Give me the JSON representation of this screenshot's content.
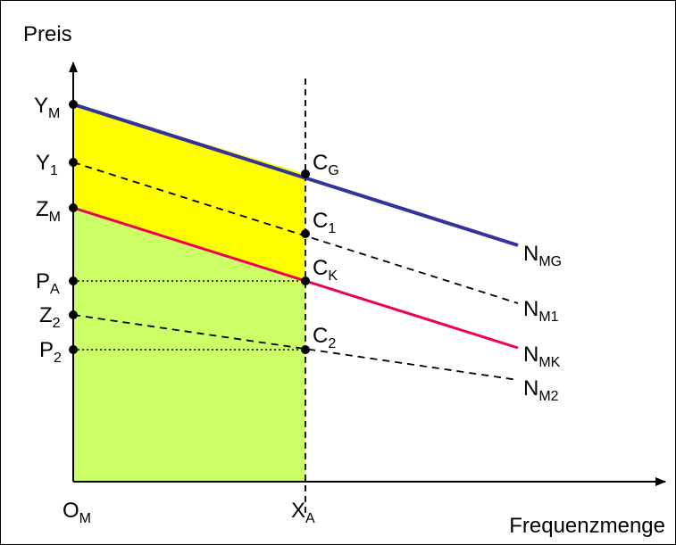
{
  "axes": {
    "y_title": "Preis",
    "x_title": "Frequenzmenge",
    "origin": {
      "base": "O",
      "sub": "M"
    },
    "x_tick": {
      "base": "X",
      "sub": "A"
    }
  },
  "y_labels": [
    {
      "id": "ym",
      "base": "Y",
      "sub": "M"
    },
    {
      "id": "y1",
      "base": "Y",
      "sub": "1"
    },
    {
      "id": "zm",
      "base": "Z",
      "sub": "M"
    },
    {
      "id": "pa",
      "base": "P",
      "sub": "A"
    },
    {
      "id": "z2",
      "base": "Z",
      "sub": "2"
    },
    {
      "id": "p2",
      "base": "P",
      "sub": "2"
    }
  ],
  "point_labels": [
    {
      "id": "cg",
      "base": "C",
      "sub": "G"
    },
    {
      "id": "c1",
      "base": "C",
      "sub": "1"
    },
    {
      "id": "ck",
      "base": "C",
      "sub": "K"
    },
    {
      "id": "c2",
      "base": "C",
      "sub": "2"
    }
  ],
  "curves": [
    {
      "id": "nmg",
      "base": "N",
      "sub": "MG",
      "color": "#333399",
      "style": "solid"
    },
    {
      "id": "nm1",
      "base": "N",
      "sub": "M1",
      "color": "#000000",
      "style": "dashed"
    },
    {
      "id": "nmk",
      "base": "N",
      "sub": "MK",
      "color": "#ee0055",
      "style": "solid"
    },
    {
      "id": "nm2",
      "base": "N",
      "sub": "M2",
      "color": "#000000",
      "style": "dashed"
    }
  ],
  "colors": {
    "upper_area": "#ffff00",
    "lower_area": "#ccff66"
  }
}
